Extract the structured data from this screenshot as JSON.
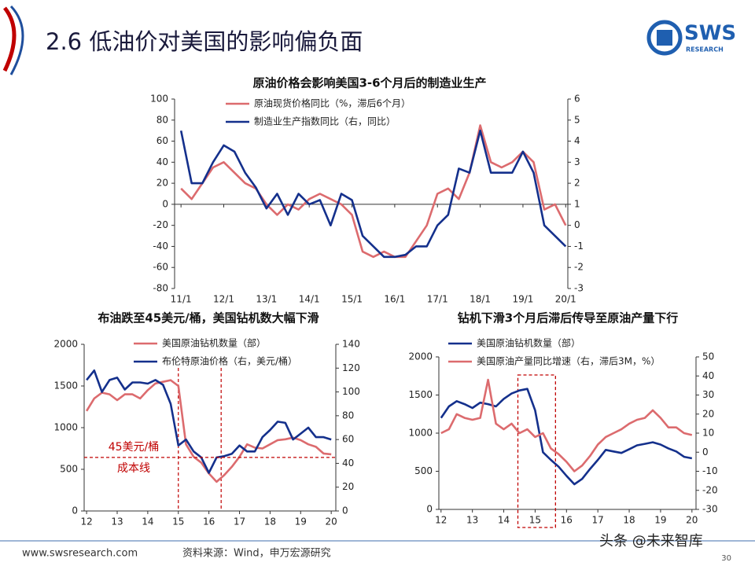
{
  "header": {
    "title": "2.6 低油价对美国的影响偏负面",
    "logo_text": "SWS",
    "logo_sub": "RESEARCH"
  },
  "footer": {
    "website": "www.swsresearch.com",
    "source": "资料来源：Wind，申万宏源研究",
    "page": "30",
    "watermark": "头条 @未来智库"
  },
  "chart_data": [
    {
      "type": "line",
      "title": "原油价格会影响美国3-6个月后的制造业生产",
      "x": [
        11,
        11.25,
        11.5,
        11.75,
        12,
        12.25,
        12.5,
        12.75,
        13,
        13.25,
        13.5,
        13.75,
        14,
        14.25,
        14.5,
        14.75,
        15,
        15.25,
        15.5,
        15.75,
        16,
        16.25,
        16.5,
        16.75,
        17,
        17.25,
        17.5,
        17.75,
        18,
        18.25,
        18.5,
        18.75,
        19,
        19.25,
        19.5,
        19.75,
        20
      ],
      "series": [
        {
          "name": "原油现货价格同比（%，滞后6个月）",
          "color": "#dc6b6e",
          "axis": "y",
          "values": [
            15,
            5,
            20,
            35,
            40,
            30,
            20,
            15,
            0,
            -10,
            0,
            -5,
            5,
            10,
            5,
            0,
            -10,
            -45,
            -50,
            -45,
            -50,
            -50,
            -35,
            -20,
            10,
            15,
            5,
            30,
            75,
            40,
            35,
            40,
            50,
            40,
            -5,
            0,
            -20
          ]
        },
        {
          "name": "制造业生产指数同比（右，同比）",
          "color": "#14308c",
          "axis": "y2",
          "values": [
            4.5,
            2,
            2,
            3,
            3.8,
            3.5,
            2.5,
            1.8,
            0.8,
            1.5,
            0.5,
            1.5,
            1,
            1.2,
            0,
            1.5,
            1.2,
            -0.5,
            -1,
            -1.5,
            -1.5,
            -1.4,
            -1,
            -1,
            0,
            0.5,
            2.7,
            2.5,
            4.5,
            2.5,
            2.5,
            2.5,
            3.5,
            2.5,
            0,
            -0.5,
            -1
          ]
        }
      ],
      "xlim": [
        10.85,
        20.05
      ],
      "xticks": [
        {
          "value": 11,
          "label": "11/1"
        },
        {
          "value": 12,
          "label": "12/1"
        },
        {
          "value": 13,
          "label": "13/1"
        },
        {
          "value": 14,
          "label": "14/1"
        },
        {
          "value": 15,
          "label": "15/1"
        },
        {
          "value": 16,
          "label": "16/1"
        },
        {
          "value": 17,
          "label": "17/1"
        },
        {
          "value": 18,
          "label": "18/1"
        },
        {
          "value": 19,
          "label": "19/1"
        },
        {
          "value": 20,
          "label": "20/1"
        }
      ],
      "ylim": [
        -80,
        100
      ],
      "yticks": [
        -80,
        -60,
        -40,
        -20,
        0,
        20,
        40,
        60,
        80,
        100
      ],
      "y2lim": [
        -3,
        6
      ],
      "y2ticks": [
        -3,
        -2,
        -1,
        0,
        1,
        2,
        3,
        4,
        5,
        6
      ]
    },
    {
      "type": "line",
      "title": "布油跌至45美元/桶，美国钻机数大幅下滑",
      "x": [
        12,
        12.25,
        12.5,
        12.75,
        13,
        13.25,
        13.5,
        13.75,
        14,
        14.25,
        14.5,
        14.75,
        15,
        15.25,
        15.5,
        15.75,
        16,
        16.25,
        16.5,
        16.75,
        17,
        17.25,
        17.5,
        17.75,
        18,
        18.25,
        18.5,
        18.75,
        19,
        19.25,
        19.5,
        19.75,
        20
      ],
      "series": [
        {
          "name": "美国原油钻机数量（部）",
          "color": "#dc6b6e",
          "axis": "y",
          "values": [
            1200,
            1350,
            1420,
            1400,
            1330,
            1400,
            1400,
            1350,
            1450,
            1530,
            1550,
            1570,
            1500,
            800,
            650,
            580,
            450,
            350,
            430,
            530,
            650,
            800,
            760,
            750,
            800,
            850,
            860,
            880,
            850,
            800,
            770,
            690,
            680
          ]
        },
        {
          "name": "布伦特原油价格（右，美元/桶）",
          "color": "#14308c",
          "axis": "y2",
          "values": [
            110,
            118,
            100,
            110,
            112,
            102,
            108,
            108,
            107,
            110,
            106,
            90,
            55,
            60,
            50,
            45,
            32,
            45,
            46,
            48,
            55,
            50,
            50,
            62,
            68,
            75,
            74,
            60,
            65,
            70,
            62,
            62,
            60
          ]
        }
      ],
      "xlim": [
        11.92,
        20.15
      ],
      "xticks": [
        12,
        13,
        14,
        15,
        16,
        17,
        18,
        19,
        20
      ],
      "ylim": [
        0,
        2000
      ],
      "yticks": [
        0,
        500,
        1000,
        1500,
        2000
      ],
      "y2lim": [
        0,
        140
      ],
      "y2ticks": [
        0,
        20,
        40,
        60,
        80,
        100,
        120,
        140
      ],
      "reference_line": {
        "axis": "y2",
        "value": 45,
        "color": "#c00000"
      },
      "annotations": [
        "45美元/桶",
        "成本线"
      ],
      "vlines": [
        15,
        16.4
      ]
    },
    {
      "type": "line",
      "title": "钻机下滑3个月后滞后传导至原油产量下行",
      "x": [
        12,
        12.25,
        12.5,
        12.75,
        13,
        13.25,
        13.5,
        13.75,
        14,
        14.25,
        14.5,
        14.75,
        15,
        15.25,
        15.5,
        15.75,
        16,
        16.25,
        16.5,
        16.75,
        17,
        17.25,
        17.5,
        17.75,
        18,
        18.25,
        18.5,
        18.75,
        19,
        19.25,
        19.5,
        19.75,
        20
      ],
      "series": [
        {
          "name": "美国原油钻机数量（部）",
          "color": "#14308c",
          "axis": "y",
          "values": [
            1200,
            1350,
            1420,
            1380,
            1330,
            1400,
            1380,
            1350,
            1450,
            1520,
            1560,
            1580,
            1300,
            750,
            650,
            560,
            440,
            330,
            400,
            530,
            650,
            780,
            760,
            740,
            790,
            840,
            860,
            880,
            850,
            800,
            760,
            690,
            670
          ]
        },
        {
          "name": "美国原油产量同比增速（右，滞后3M，%）",
          "color": "#dc6b6e",
          "axis": "y2",
          "values": [
            10,
            12,
            20,
            18,
            17,
            18,
            38,
            15,
            12,
            15,
            10,
            12,
            8,
            10,
            2,
            -1,
            -5,
            -10,
            -7,
            -2,
            4,
            8,
            10,
            12,
            15,
            17,
            18,
            22,
            18,
            13,
            13,
            10,
            9
          ]
        }
      ],
      "xlim": [
        11.93,
        20.13
      ],
      "xticks": [
        12,
        13,
        14,
        15,
        16,
        17,
        18,
        19,
        20
      ],
      "ylim": [
        0,
        2000
      ],
      "yticks": [
        0,
        500,
        1000,
        1500,
        2000
      ],
      "y2lim": [
        -30,
        50
      ],
      "y2ticks": [
        -30,
        -20,
        -10,
        0,
        10,
        20,
        30,
        40,
        50
      ],
      "highlight_x": [
        14.45,
        15.65
      ]
    }
  ]
}
